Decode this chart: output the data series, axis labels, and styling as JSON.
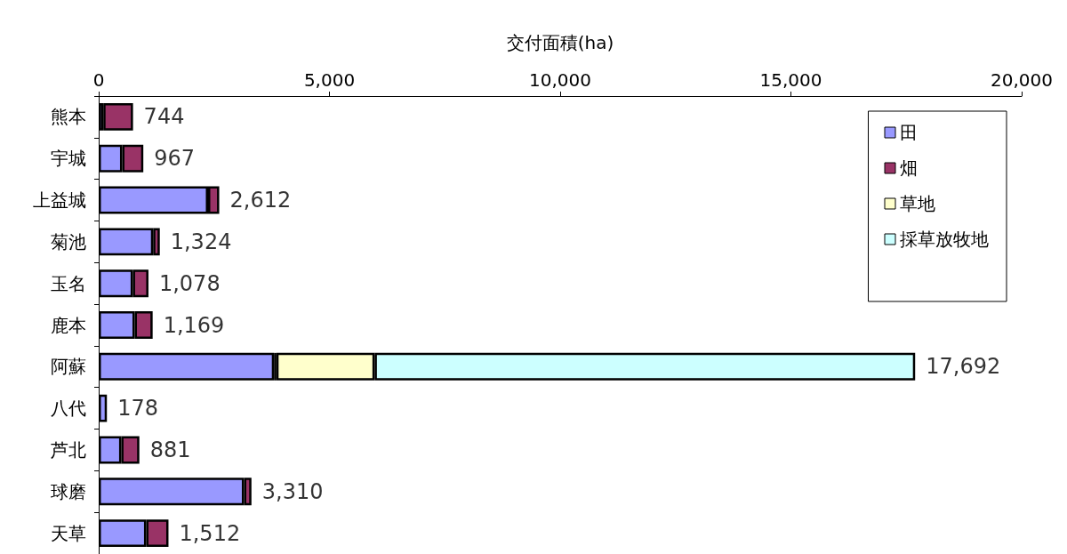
{
  "chart_data": {
    "type": "bar",
    "orientation": "horizontal",
    "stacked": true,
    "xlabel": "交付面積(ha)",
    "categories": [
      "熊本",
      "宇城",
      "上益城",
      "菊池",
      "玉名",
      "鹿本",
      "阿蘇",
      "八代",
      "芦北",
      "球磨",
      "天草"
    ],
    "series": [
      {
        "name": "田",
        "color": "#9999ff",
        "values": [
          100,
          510,
          2370,
          1180,
          740,
          780,
          3800,
          178,
          490,
          3150,
          1030
        ]
      },
      {
        "name": "畑",
        "color": "#993366",
        "values": [
          644,
          457,
          242,
          144,
          338,
          389,
          50,
          null,
          391,
          160,
          482
        ]
      },
      {
        "name": "草地",
        "color": "#ffffcc",
        "values": [
          null,
          null,
          null,
          null,
          null,
          null,
          2130,
          null,
          null,
          null,
          null
        ]
      },
      {
        "name": "採草放牧地",
        "color": "#ccffff",
        "values": [
          null,
          null,
          null,
          null,
          null,
          null,
          11712,
          null,
          null,
          null,
          null
        ]
      }
    ],
    "totals": [
      "744",
      "967",
      "2,612",
      "1,324",
      "1,078",
      "1,169",
      "17,692",
      "178",
      "881",
      "3,310",
      "1,512"
    ],
    "xlim": [
      0,
      20000
    ],
    "xticks": [
      0,
      {
        "value": 5000,
        "label": "5,000"
      },
      {
        "value": 10000,
        "label": "10,000"
      },
      {
        "value": 15000,
        "label": "15,000"
      },
      {
        "value": 20000,
        "label": "20,000"
      }
    ],
    "grid": false,
    "legend": "top right"
  }
}
